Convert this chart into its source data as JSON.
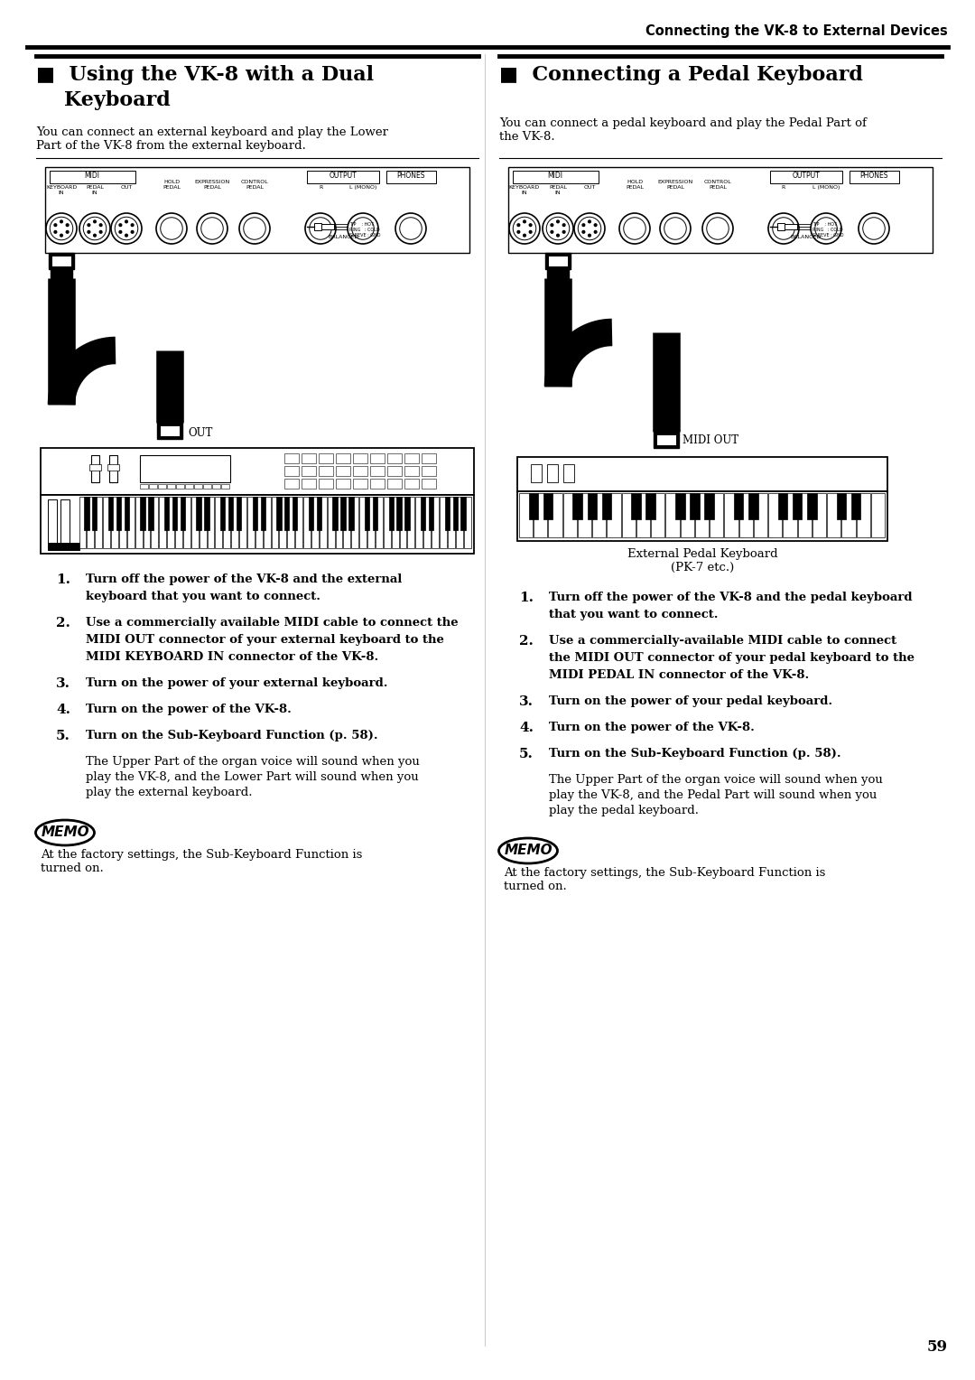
{
  "page_title": "Connecting the VK-8 to External Devices",
  "page_number": "59",
  "bg_color": "#ffffff",
  "left_title_line1": "■  Using the VK-8 with a Dual",
  "left_title_line2": "    Keyboard",
  "right_title": "■  Connecting a Pedal Keyboard",
  "left_intro": "You can connect an external keyboard and play the Lower\nPart of the VK-8 from the external keyboard.",
  "right_intro": "You can connect a pedal keyboard and play the Pedal Part of\nthe VK-8.",
  "out_label": "OUT",
  "midi_out_label": "MIDI OUT",
  "ext_pedal_label": "External Pedal Keyboard\n(PK-7 etc.)",
  "left_step1": "Turn off the power of the VK-8 and the external",
  "left_step1b": "keyboard that you want to connect.",
  "left_step2": "Use a commercially available MIDI cable to connect the",
  "left_step2b": "MIDI OUT connector of your external keyboard to the",
  "left_step2c": "MIDI KEYBOARD IN connector of the VK-8.",
  "left_step3": "Turn on the power of your external keyboard.",
  "left_step4": "Turn on the power of the VK-8.",
  "left_step5": "Turn on the Sub-Keyboard Function (p. 58).",
  "left_note": "The Upper Part of the organ voice will sound when you\nplay the VK-8, and the Lower Part will sound when you\nplay the external keyboard.",
  "left_memo": "At the factory settings, the Sub-Keyboard Function is\nturned on.",
  "right_step1": "Turn off the power of the VK-8 and the pedal keyboard",
  "right_step1b": "that you want to connect.",
  "right_step2": "Use a commercially-available MIDI cable to connect",
  "right_step2b": "the MIDI OUT connector of your pedal keyboard to the",
  "right_step2c": "MIDI PEDAL IN connector of the VK-8.",
  "right_step3": "Turn on the power of your pedal keyboard.",
  "right_step4": "Turn on the power of the VK-8.",
  "right_step5": "Turn on the Sub-Keyboard Function (p. 58).",
  "right_note": "The Upper Part of the organ voice will sound when you\nplay the VK-8, and the Pedal Part will sound when you\nplay the pedal keyboard.",
  "right_memo": "At the factory settings, the Sub-Keyboard Function is\nturned on."
}
